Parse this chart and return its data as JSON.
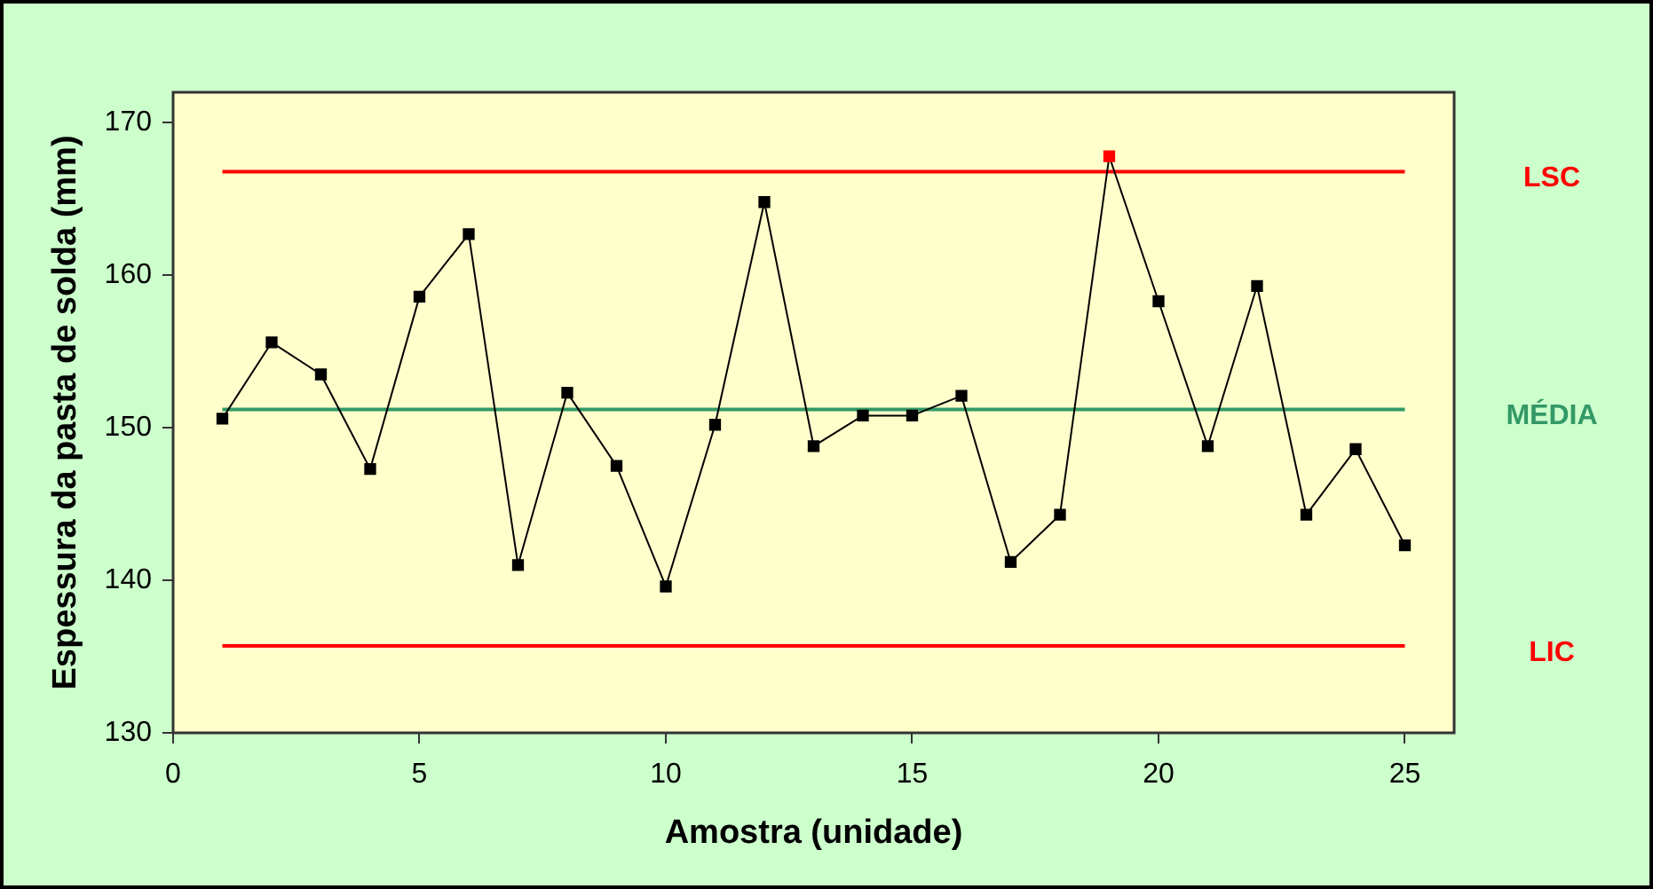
{
  "chart_data": {
    "type": "line",
    "xlabel": "Amostra (unidade)",
    "ylabel": "Espessura da pasta de solda (mm)",
    "x": [
      1,
      2,
      3,
      4,
      5,
      6,
      7,
      8,
      9,
      10,
      11,
      12,
      13,
      14,
      15,
      16,
      17,
      18,
      19,
      20,
      21,
      22,
      23,
      24,
      25
    ],
    "series": [
      {
        "color": "#000000",
        "colors": [
          "#000000",
          "#000000",
          "#000000",
          "#000000",
          "#000000",
          "#000000",
          "#000000",
          "#000000",
          "#000000",
          "#000000",
          "#000000",
          "#000000",
          "#000000",
          "#000000",
          "#000000",
          "#000000",
          "#000000",
          "#000000",
          "#ff0000",
          "#000000",
          "#000000",
          "#000000",
          "#000000",
          "#000000",
          "#000000"
        ],
        "values": [
          150.6,
          155.6,
          153.5,
          147.3,
          158.6,
          162.7,
          141.0,
          152.3,
          147.5,
          139.6,
          150.2,
          164.8,
          148.8,
          150.8,
          150.8,
          152.1,
          141.2,
          144.3,
          167.8,
          158.3,
          148.8,
          159.3,
          144.3,
          148.6,
          142.3
        ]
      }
    ],
    "xlim": [
      0,
      26
    ],
    "xticks": [
      0,
      5,
      10,
      15,
      20,
      25
    ],
    "ylim": [
      130,
      172
    ],
    "yticks": [
      130,
      140,
      150,
      160,
      170
    ],
    "ref_lines": [
      {
        "axis": "y",
        "value": 166.8,
        "label": "LSC",
        "color": "#ff0000"
      },
      {
        "axis": "y",
        "value": 151.2,
        "label": "MÉDIA",
        "color": "#339966"
      },
      {
        "axis": "y",
        "value": 135.7,
        "label": "LIC",
        "color": "#ff0000"
      }
    ],
    "grid": false,
    "legend": false,
    "marker": "square",
    "line_style": "solid"
  }
}
